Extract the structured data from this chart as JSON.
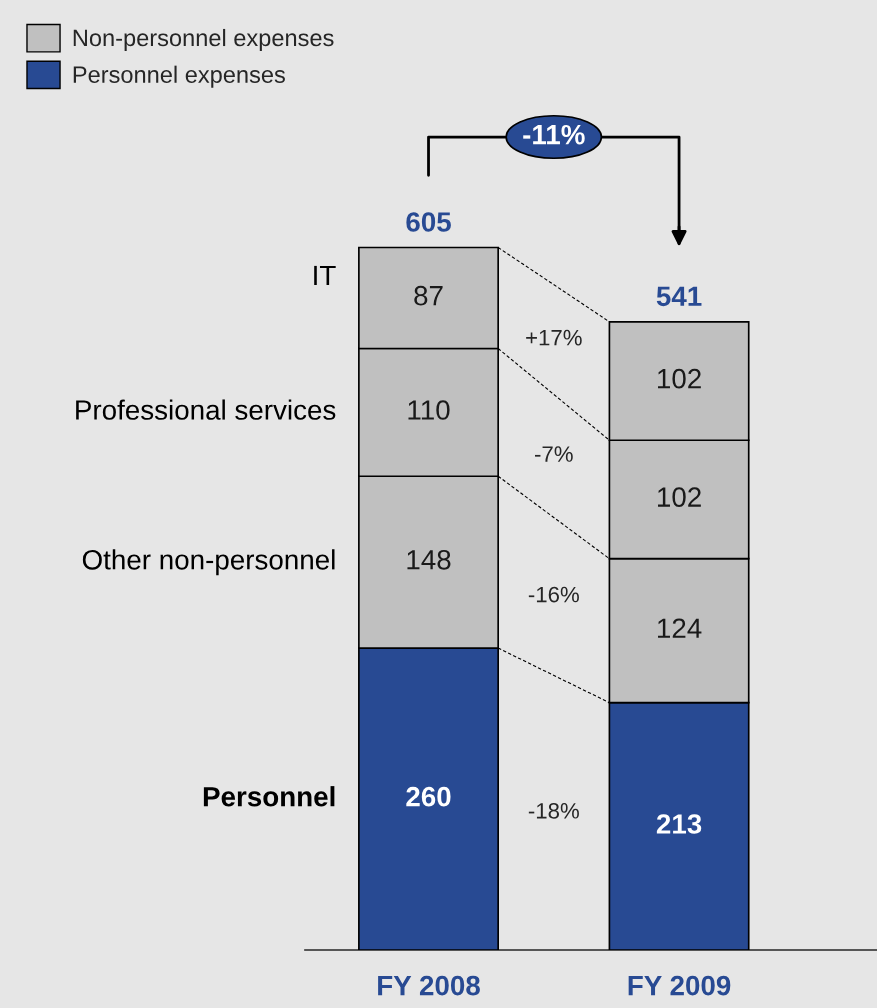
{
  "chart_data": {
    "type": "bar",
    "stacked": true,
    "categories": [
      "FY 2008",
      "FY 2009"
    ],
    "series": [
      {
        "name": "Personnel",
        "color": "#284a93",
        "values": [
          260,
          213
        ]
      },
      {
        "name": "Other non-personnel",
        "color": "#c0c0c0",
        "values": [
          148,
          124
        ]
      },
      {
        "name": "Professional services",
        "color": "#c0c0c0",
        "values": [
          110,
          102
        ]
      },
      {
        "name": "IT",
        "color": "#c0c0c0",
        "values": [
          87,
          102
        ]
      }
    ],
    "data_labels": true,
    "totals": [
      "605",
      "541"
    ],
    "legend": "top left",
    "annotations": [
      "Non-personnel expenses",
      "Personnel expenses",
      "-11%",
      "+17%",
      "-7%",
      "-16%",
      "-18%"
    ]
  }
}
